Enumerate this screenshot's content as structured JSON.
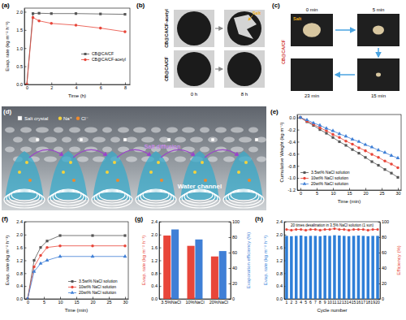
{
  "chart_data": [
    {
      "type": "line",
      "title": "(a)",
      "xlabel": "Time (h)",
      "ylabel": "Evap. rate (kg m⁻² h⁻¹)",
      "x": [
        0,
        0.5,
        1,
        2,
        4,
        6,
        8
      ],
      "xlim": [
        -0.2,
        8.4
      ],
      "xticks": [
        0,
        2,
        4,
        6,
        8
      ],
      "ylim": [
        0,
        2.1
      ],
      "yticks": [
        {
          "value": 0,
          "label": "0.0"
        },
        0.5,
        {
          "value": 1,
          "label": "1.0"
        },
        1.5,
        {
          "value": 2,
          "label": "2.0"
        }
      ],
      "legend": "center right",
      "series": [
        {
          "name": "CB@CA/CF",
          "color": "#555555",
          "marker": "square",
          "values": [
            0,
            1.95,
            1.96,
            1.95,
            1.95,
            1.94,
            1.93
          ]
        },
        {
          "name": "CB@CA/CF-acetyl",
          "color": "#e8463a",
          "marker": "circle",
          "values": [
            0,
            1.84,
            1.75,
            1.68,
            1.63,
            1.55,
            1.45
          ]
        }
      ]
    },
    {
      "type": "line",
      "title": "(e)",
      "xlabel": "Time (min)",
      "ylabel": "Cumulative Weight (kg m⁻²)",
      "x": [
        0,
        2,
        4,
        6,
        8,
        10,
        12,
        14,
        16,
        18,
        20,
        22,
        24,
        26,
        28,
        30
      ],
      "xlim": [
        -1,
        31
      ],
      "xticks": [
        0,
        5,
        10,
        15,
        20,
        25,
        30
      ],
      "ylim": [
        -1.2,
        0.05
      ],
      "yticks": [
        {
          "value": 0,
          "label": "0.0"
        },
        -0.2,
        -0.4,
        -0.6,
        -0.8,
        {
          "value": -1,
          "label": "-1.0"
        },
        -1.2
      ],
      "legend": "lower left",
      "series": [
        {
          "name": "3.5wt% NaCl solution",
          "color": "#555555",
          "marker": "square",
          "values": [
            0,
            -0.07,
            -0.13,
            -0.2,
            -0.26,
            -0.33,
            -0.4,
            -0.46,
            -0.53,
            -0.59,
            -0.66,
            -0.73,
            -0.79,
            -0.86,
            -0.92,
            -0.99
          ]
        },
        {
          "name": "10wt% NaCl solution",
          "color": "#e8463a",
          "marker": "circle",
          "values": [
            0,
            -0.06,
            -0.11,
            -0.17,
            -0.22,
            -0.28,
            -0.33,
            -0.39,
            -0.44,
            -0.5,
            -0.55,
            -0.61,
            -0.66,
            -0.72,
            -0.77,
            -0.83
          ]
        },
        {
          "name": "20wt% NaCl solution",
          "color": "#3f7fd6",
          "marker": "triangle",
          "values": [
            0,
            -0.04,
            -0.09,
            -0.13,
            -0.18,
            -0.22,
            -0.27,
            -0.31,
            -0.36,
            -0.4,
            -0.45,
            -0.49,
            -0.54,
            -0.58,
            -0.63,
            -0.67
          ]
        }
      ]
    },
    {
      "type": "line",
      "title": "(f)",
      "xlabel": "Time (min)",
      "ylabel": "Evap. rate (kg m⁻² h⁻¹)",
      "x": [
        0,
        2,
        4,
        6,
        10,
        20,
        30
      ],
      "xlim": [
        -1,
        31
      ],
      "xticks": [
        0,
        5,
        10,
        15,
        20,
        25,
        30
      ],
      "ylim": [
        0,
        2.4
      ],
      "yticks": [
        {
          "value": 0,
          "label": "0.0"
        },
        0.4,
        0.8,
        1.2,
        1.6,
        {
          "value": 2,
          "label": "2.0"
        },
        2.4
      ],
      "legend": "lower right",
      "series": [
        {
          "name": "3.5wt% NaCl solution",
          "color": "#555555",
          "marker": "square",
          "values": [
            0,
            1.2,
            1.6,
            1.8,
            1.97,
            1.97,
            1.97
          ]
        },
        {
          "name": "10wt% NaCl solution",
          "color": "#e8463a",
          "marker": "circle",
          "values": [
            0,
            1.0,
            1.35,
            1.6,
            1.65,
            1.65,
            1.65
          ]
        },
        {
          "name": "20wt% NaCl solution",
          "color": "#3f7fd6",
          "marker": "triangle",
          "values": [
            0,
            0.85,
            1.1,
            1.2,
            1.32,
            1.32,
            1.32
          ]
        }
      ]
    },
    {
      "type": "bar",
      "title": "(g)",
      "ylabel": "Evap. rate (kg m⁻² h⁻¹)",
      "y2label": "Evaporation efficiency (%)",
      "categories": [
        "3.5%NaCl",
        "10%NaCl",
        "20%NaCl"
      ],
      "ylim": [
        0,
        2.4
      ],
      "yticks": [
        {
          "value": 0,
          "label": "0.0"
        },
        0.4,
        0.8,
        1.2,
        1.6,
        {
          "value": 2,
          "label": "2.0"
        },
        2.4
      ],
      "y2lim": [
        0,
        100
      ],
      "y2ticks": [
        0,
        20,
        40,
        60,
        80,
        100
      ],
      "series": [
        {
          "color": "#e8463a",
          "values": [
            1.97,
            1.65,
            1.32
          ]
        },
        {
          "color": "#3f7fd6",
          "axis": "y2",
          "values": [
            90,
            77,
            62
          ]
        }
      ]
    },
    {
      "type": "bar",
      "title": "(h)",
      "xlabel": "Cycle number",
      "ylabel": "Evap. rate (kg m⁻² h⁻¹)",
      "y2label": "Efficiency (%)",
      "annotations": [
        "20 times desalination in 3.5% NaCl solution (1 sun)"
      ],
      "categories": [
        "1",
        "2",
        "3",
        "4",
        "5",
        "6",
        "7",
        "8",
        "9",
        "10",
        "11",
        "12",
        "13",
        "14",
        "15",
        "16",
        "17",
        "18",
        "19",
        "20"
      ],
      "ylim": [
        0,
        2.4
      ],
      "yticks": [
        {
          "value": 0,
          "label": "0.0"
        },
        0.4,
        0.8,
        1.2,
        1.6,
        {
          "value": 2,
          "label": "2.0"
        },
        2.4
      ],
      "y2lim": [
        0,
        100
      ],
      "y2ticks": [
        0,
        20,
        40,
        60,
        80,
        100
      ],
      "series": [
        {
          "type": "bar",
          "color": "#2f7fd8",
          "values": [
            1.96,
            1.95,
            1.96,
            1.97,
            1.95,
            1.96,
            1.96,
            1.95,
            1.97,
            1.96,
            1.98,
            1.97,
            1.96,
            1.95,
            1.96,
            1.97,
            1.96,
            1.95,
            1.96,
            1.96
          ]
        },
        {
          "type": "line",
          "marker": "circle",
          "color": "#e8463a",
          "axis": "y2",
          "values": [
            90,
            89,
            90,
            90,
            89,
            90,
            90,
            89,
            90,
            90,
            91,
            90,
            90,
            89,
            90,
            90,
            90,
            89,
            90,
            90
          ]
        }
      ]
    }
  ],
  "figures": [
    {
      "title": "(b)",
      "row_labels": [
        "CB@CA/CF-acetyl",
        "CB@CA/CF"
      ],
      "column_labels": [
        "0 h",
        "8 h"
      ],
      "annotation": "Salt"
    },
    {
      "title": "(c)",
      "row_labels": [
        "CB@CA/CF"
      ],
      "frame_labels": [
        "0 min",
        "5 min",
        "15 min",
        "23 min"
      ],
      "annotation": "Salt"
    },
    {
      "title": "(d)",
      "legend_entries": [
        "Salt crystal",
        "Na⁺",
        "Cl⁻"
      ],
      "annotations": [
        "Salt diffusion",
        "Water channel"
      ]
    }
  ]
}
